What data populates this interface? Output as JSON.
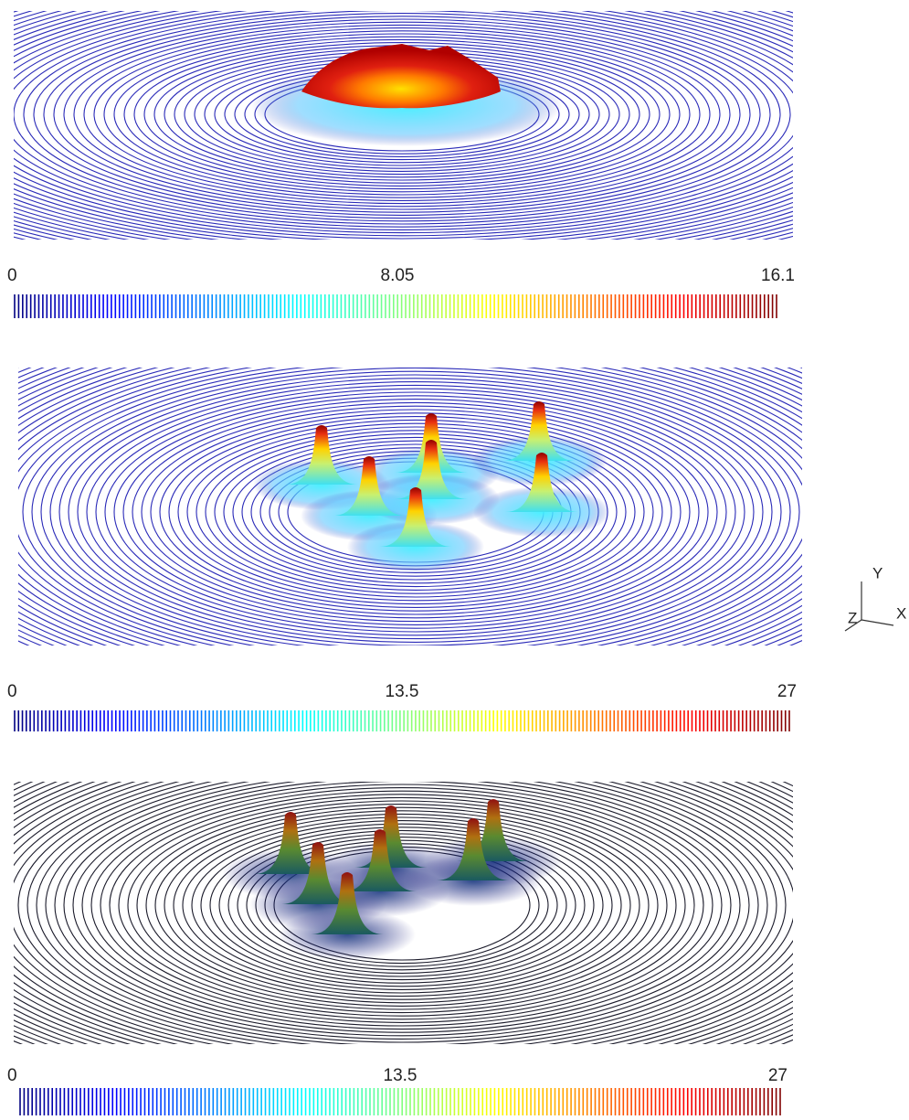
{
  "panels": [
    {
      "colorbar": {
        "min": 0,
        "mid": 8.05,
        "max": 16.1
      }
    },
    {
      "colorbar": {
        "min": 0,
        "mid": 13.5,
        "max": 27
      }
    },
    {
      "colorbar": {
        "min": 0,
        "mid": 13.5,
        "max": 27
      }
    }
  ],
  "axes": {
    "y": "Y",
    "x": "X",
    "z": "Z"
  }
}
